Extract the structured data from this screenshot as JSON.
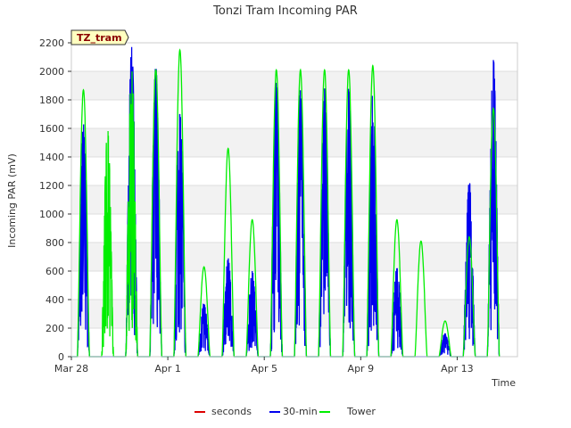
{
  "chart_data": {
    "type": "line",
    "title": "Tonzi Tram Incoming PAR",
    "tag": "TZ_tram",
    "xlabel": "Time",
    "ylabel": "Incoming PAR (mV)",
    "ylim": [
      0,
      2200
    ],
    "yticks": [
      0,
      200,
      400,
      600,
      800,
      1000,
      1200,
      1400,
      1600,
      1800,
      2000,
      2200
    ],
    "xlim": [
      0,
      18.5
    ],
    "xticks": [
      {
        "value": 0,
        "label": "Mar 28"
      },
      {
        "value": 4,
        "label": "Apr 1"
      },
      {
        "value": 8,
        "label": "Apr 5"
      },
      {
        "value": 12,
        "label": "Apr 9"
      },
      {
        "value": 16,
        "label": "Apr 13"
      }
    ],
    "grid": true,
    "legend_position": "bottom",
    "series": [
      {
        "name": "seconds",
        "color": "#dd0000",
        "peaks": []
      },
      {
        "name": "30-min",
        "color": "#0000ee",
        "peaks": [
          1630,
          0,
          2170,
          2040,
          1700,
          370,
          690,
          600,
          1980,
          1870,
          1880,
          1880,
          1850,
          620,
          0,
          160,
          1230,
          2080
        ]
      },
      {
        "name": "Tower",
        "color": "#00ee00",
        "peaks": [
          1870,
          1600,
          2010,
          2010,
          2150,
          630,
          1460,
          960,
          2010,
          2010,
          2010,
          2010,
          2040,
          960,
          810,
          250,
          840,
          1740
        ]
      }
    ]
  }
}
